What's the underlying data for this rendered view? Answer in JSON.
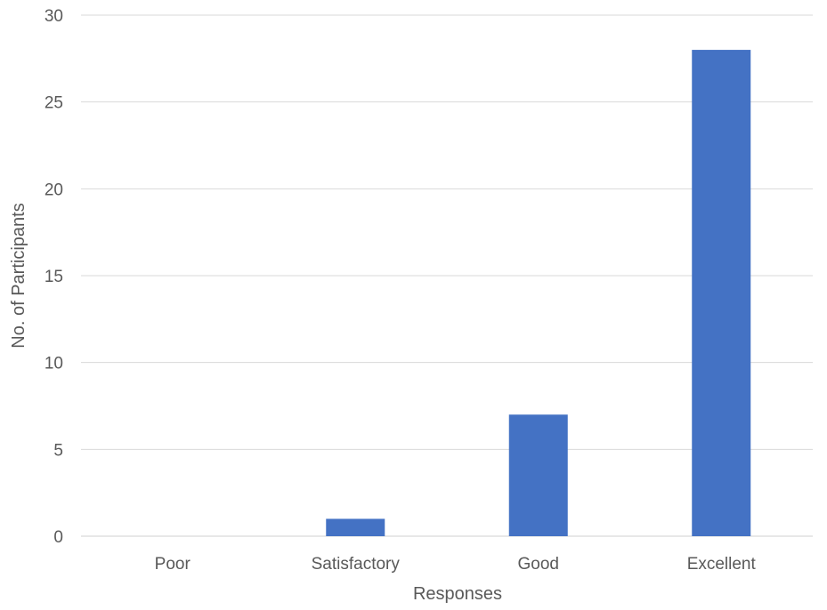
{
  "chart_data": {
    "type": "bar",
    "title": "",
    "xlabel": "Responses",
    "ylabel": "No. of Participants",
    "categories": [
      "Poor",
      "Satisfactory",
      "Good",
      "Excellent"
    ],
    "series": [
      {
        "values": [
          0,
          1,
          7,
          28
        ],
        "color": "#4472c4"
      }
    ],
    "ylim": [
      0,
      30
    ],
    "yticks": [
      0,
      5,
      10,
      15,
      20,
      25,
      30
    ],
    "grid": true,
    "legend": "none"
  }
}
